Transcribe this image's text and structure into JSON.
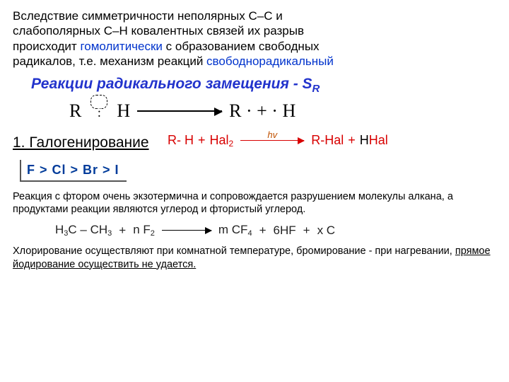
{
  "intro": {
    "line1": "Вследствие симметричности неполярных С–С и",
    "line2": "слабополярных С–Н ковалентных связей их разрыв",
    "line3a": "происходит ",
    "line3b": "гомолитически",
    "line3c": " с образованием свободных",
    "line4a": "радикалов, т.е. механизм реакций ",
    "line4b": "свободнорадикальный"
  },
  "heading": {
    "text_a": "Реакции радикального замещения - S",
    "text_sub": "R"
  },
  "scheme1": {
    "left_R": "R",
    "dots": ":",
    "left_H": "H",
    "right": "R · + · H"
  },
  "section1": "1. Галогенирование",
  "hal": {
    "rh": "R- H",
    "plus": "+",
    "hal2a": "Hal",
    "hal2sub": "2",
    "hv": "hv",
    "rhal": "R-Hal",
    "hhal_h": "H",
    "hhal_hal": "Hal"
  },
  "order": "F  >  Cl  >  Br  >  I",
  "note1": "Реакция с фтором очень экзотермична и сопровождается разрушением молекулы алкана, а продуктами реакции являются углерод и фтористый углерод.",
  "eq": {
    "l1": "H",
    "l2": "3",
    "l3": "C – CH",
    "l4": "3",
    "plus": "+",
    "nf": "n F",
    "nf2": "2",
    "r1": "m CF",
    "r1s": "4",
    "r2": "6HF",
    "r3": "x C"
  },
  "note2a": "Хлорирование осуществляют при комнатной температуре, бромирование  - при нагревании, ",
  "note2b": "прямое йодирование осуществить не удается."
}
